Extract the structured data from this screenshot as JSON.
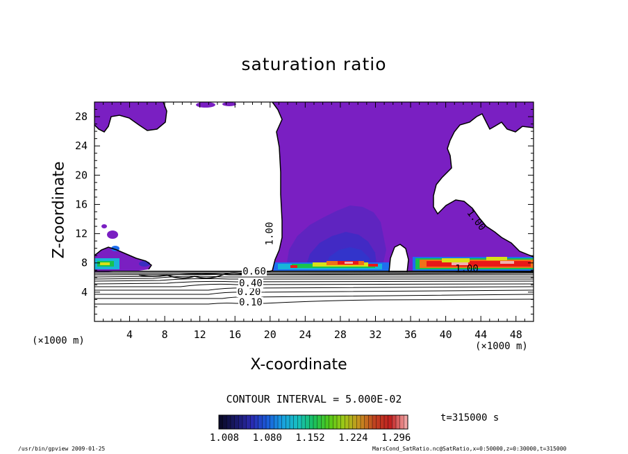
{
  "chart_data": {
    "type": "contour",
    "title": "saturation ratio",
    "xlabel": "X-coordinate",
    "ylabel": "Z-coordinate",
    "x_unit_label": "(×1000 m)",
    "xlim": [
      0,
      50
    ],
    "ylim": [
      0,
      30
    ],
    "x_ticks": [
      4,
      8,
      12,
      16,
      20,
      24,
      28,
      32,
      36,
      40,
      44,
      48
    ],
    "y_ticks": [
      4,
      8,
      12,
      16,
      20,
      24,
      28
    ],
    "contour_interval_text": "CONTOUR INTERVAL = 5.000E-02",
    "contour_labels": [
      {
        "text": "0.10",
        "x": 17.8,
        "z": 2.2
      },
      {
        "text": "0.20",
        "x": 17.6,
        "z": 3.6
      },
      {
        "text": "0.40",
        "x": 17.8,
        "z": 4.8
      },
      {
        "text": "0.60",
        "x": 18.2,
        "z": 6.4
      },
      {
        "text": "1.00",
        "x": 20.3,
        "z": 12.0
      },
      {
        "text": "1.00",
        "x": 43.2,
        "z": 13.6
      },
      {
        "text": "1.00",
        "x": 42.4,
        "z": 6.8
      }
    ],
    "shading_color": "#7a1fc2",
    "supersaturation_colors": [
      "#9a2fb8",
      "#3a2ec2",
      "#1f6ef0",
      "#18b4d8",
      "#18c24e",
      "#d8e018",
      "#f07018",
      "#e81818",
      "#f0b0b0"
    ],
    "colorbar": {
      "ticks": [
        "1.008",
        "1.080",
        "1.152",
        "1.224",
        "1.296"
      ],
      "colors": [
        "#0a0a2a",
        "#1a1a6a",
        "#2a2ab0",
        "#1a5ad8",
        "#18a0e0",
        "#18c0c0",
        "#18c060",
        "#50c818",
        "#a0c818",
        "#c89020",
        "#c04020",
        "#c02020",
        "#f0a0a0"
      ]
    },
    "time_label": "t=315000 s",
    "footer_left": "/usr/bin/gpview  2009-01-25",
    "footer_right": "MarsCond_SatRatio.nc@SatRatio,x=0:50000,z=0:30000,t=315000"
  }
}
